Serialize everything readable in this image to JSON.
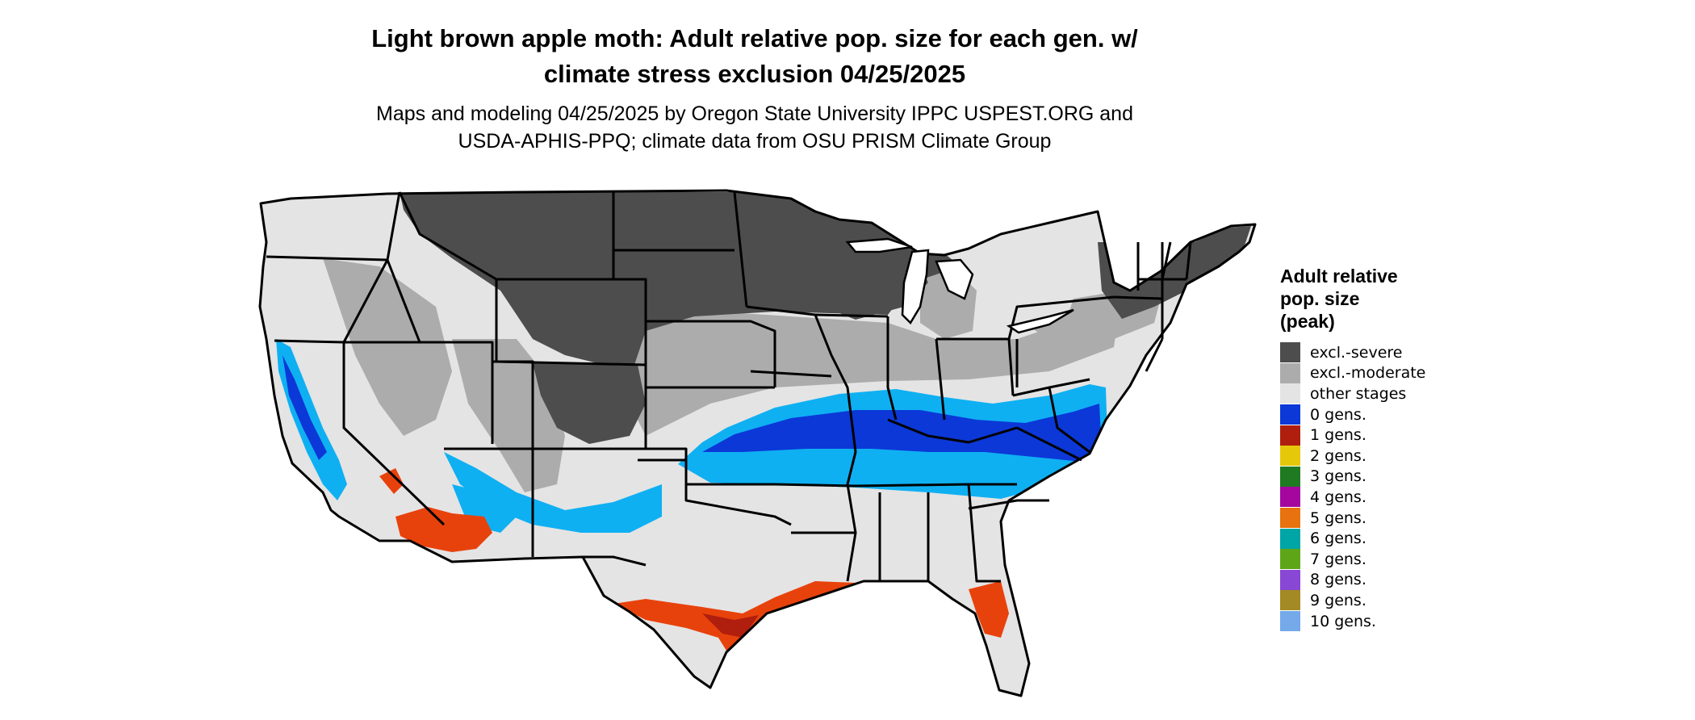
{
  "title_line1": "Light brown apple moth: Adult relative pop. size for each gen. w/",
  "title_line2": "climate stress exclusion 04/25/2025",
  "subtitle_line1": "Maps and modeling 04/25/2025 by Oregon State University IPPC USPEST.ORG and",
  "subtitle_line2": "USDA-APHIS-PPQ; climate data from OSU PRISM Climate Group",
  "legend": {
    "title_line1": "Adult relative",
    "title_line2": "pop. size",
    "title_line3": "(peak)",
    "items": [
      {
        "label": "excl.-severe",
        "color": "#4d4d4d"
      },
      {
        "label": "excl.-moderate",
        "color": "#acacac"
      },
      {
        "label": "other stages",
        "color": "#e4e4e4"
      },
      {
        "label": "0 gens.",
        "color": "#0c38d8"
      },
      {
        "label": "1 gens.",
        "color": "#b01e0e"
      },
      {
        "label": "2 gens.",
        "color": "#e6c80a"
      },
      {
        "label": "3 gens.",
        "color": "#1f7a22"
      },
      {
        "label": "4 gens.",
        "color": "#a4069e"
      },
      {
        "label": "5 gens.",
        "color": "#e8720f"
      },
      {
        "label": "6 gens.",
        "color": "#00a5a5"
      },
      {
        "label": "7 gens.",
        "color": "#5ea517"
      },
      {
        "label": "8 gens.",
        "color": "#8847d4"
      },
      {
        "label": "9 gens.",
        "color": "#a38a22"
      },
      {
        "label": "10 gens.",
        "color": "#74a9ea"
      }
    ]
  },
  "map_colors": {
    "light_blue": "#0fb0f2",
    "orange_red": "#e8420c",
    "dark_red": "#b01e0e",
    "border": "#000000"
  }
}
